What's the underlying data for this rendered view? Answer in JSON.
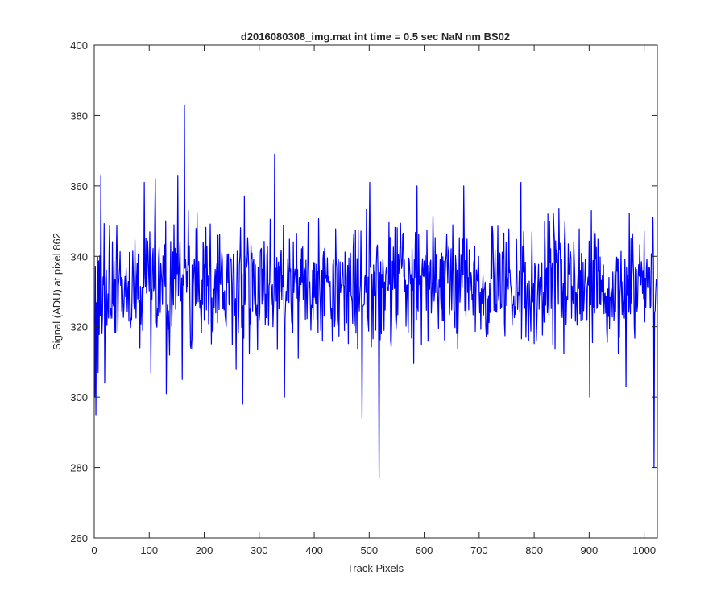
{
  "chart_data": {
    "type": "line",
    "title": "d2016080308_img.mat int time = 0.5 sec  NaN nm BS02",
    "xlabel": "Track Pixels",
    "ylabel": "Signal (ADU) at pixel 862",
    "xlim": [
      0,
      1024
    ],
    "ylim": [
      260,
      400
    ],
    "xticks": [
      0,
      100,
      200,
      300,
      400,
      500,
      600,
      700,
      800,
      900,
      1000
    ],
    "yticks": [
      260,
      280,
      300,
      320,
      340,
      360,
      380,
      400
    ],
    "grid": false,
    "line_color": "#0000ff",
    "series": [
      {
        "n_points": 1024,
        "baseline": 332,
        "noise_amplitude": 9,
        "notable_points": [
          {
            "x": 0,
            "y": 300
          },
          {
            "x": 2,
            "y": 295
          },
          {
            "x": 6,
            "y": 307
          },
          {
            "x": 11,
            "y": 363
          },
          {
            "x": 18,
            "y": 304
          },
          {
            "x": 90,
            "y": 361
          },
          {
            "x": 102,
            "y": 307
          },
          {
            "x": 110,
            "y": 362
          },
          {
            "x": 130,
            "y": 301
          },
          {
            "x": 151,
            "y": 363
          },
          {
            "x": 159,
            "y": 305
          },
          {
            "x": 163,
            "y": 383
          },
          {
            "x": 170,
            "y": 353
          },
          {
            "x": 257,
            "y": 308
          },
          {
            "x": 269,
            "y": 298
          },
          {
            "x": 327,
            "y": 369
          },
          {
            "x": 345,
            "y": 300
          },
          {
            "x": 486,
            "y": 294
          },
          {
            "x": 500,
            "y": 361
          },
          {
            "x": 517,
            "y": 277
          },
          {
            "x": 521,
            "y": 318
          },
          {
            "x": 586,
            "y": 360
          },
          {
            "x": 671,
            "y": 360
          },
          {
            "x": 775,
            "y": 361
          },
          {
            "x": 900,
            "y": 300
          },
          {
            "x": 966,
            "y": 303
          },
          {
            "x": 1017,
            "y": 280
          },
          {
            "x": 1020,
            "y": 330
          }
        ]
      }
    ]
  }
}
